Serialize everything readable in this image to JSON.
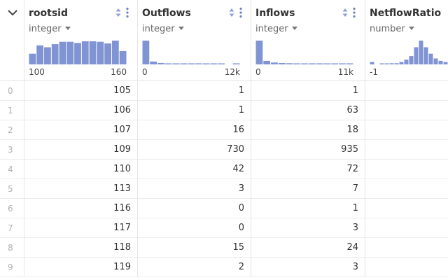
{
  "accent_color": "#8093d2",
  "columns": [
    {
      "name": "rootsid",
      "type": "integer",
      "hist_min": "100",
      "hist_max": "160",
      "histogram": [
        0.45,
        0.8,
        0.72,
        0.85,
        0.95,
        0.95,
        0.9,
        0.97,
        0.97,
        0.95,
        0.88,
        1.0,
        0.56
      ]
    },
    {
      "name": "Outflows",
      "type": "integer",
      "hist_min": "0",
      "hist_max": "12k",
      "histogram": [
        1.0,
        0.12,
        0.06,
        0.04,
        0.03,
        0.03,
        0.03,
        0.03,
        0.03,
        0.02,
        0.02,
        0.0,
        0.03
      ]
    },
    {
      "name": "Inflows",
      "type": "integer",
      "hist_min": "0",
      "hist_max": "11k",
      "histogram": [
        1.0,
        0.15,
        0.08,
        0.06,
        0.05,
        0.04,
        0.04,
        0.03,
        0.03,
        0.03,
        0.03,
        0.03,
        0.03
      ]
    },
    {
      "name": "NetflowRatio",
      "type": "number",
      "hist_min": "-1",
      "hist_max": "",
      "histogram": [
        0.1,
        0.0,
        0.03,
        0.03,
        0.05,
        0.05,
        0.1,
        0.2,
        0.35,
        0.72,
        1.0,
        0.72,
        0.45,
        0.25,
        0.15,
        0.1
      ]
    }
  ],
  "rows": [
    {
      "index": "0",
      "rootsid": "105",
      "outflows": "1",
      "inflows": "1"
    },
    {
      "index": "1",
      "rootsid": "106",
      "outflows": "1",
      "inflows": "63"
    },
    {
      "index": "2",
      "rootsid": "107",
      "outflows": "16",
      "inflows": "18"
    },
    {
      "index": "3",
      "rootsid": "109",
      "outflows": "730",
      "inflows": "935"
    },
    {
      "index": "4",
      "rootsid": "110",
      "outflows": "42",
      "inflows": "72"
    },
    {
      "index": "5",
      "rootsid": "113",
      "outflows": "3",
      "inflows": "7"
    },
    {
      "index": "6",
      "rootsid": "116",
      "outflows": "0",
      "inflows": "1"
    },
    {
      "index": "7",
      "rootsid": "117",
      "outflows": "0",
      "inflows": "3"
    },
    {
      "index": "8",
      "rootsid": "118",
      "outflows": "15",
      "inflows": "24"
    },
    {
      "index": "9",
      "rootsid": "119",
      "outflows": "2",
      "inflows": "3"
    }
  ]
}
